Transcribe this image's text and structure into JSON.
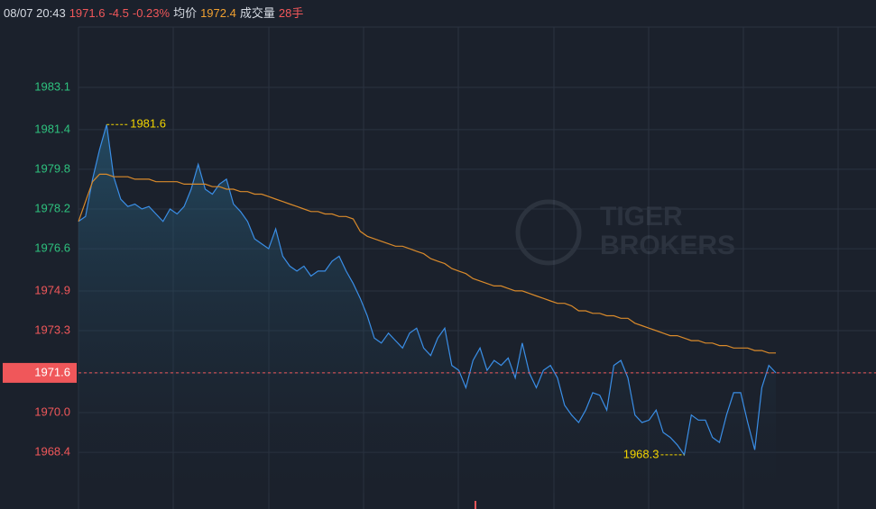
{
  "header": {
    "datetime": "08/07 20:43",
    "price": 1971.6,
    "change": -4.5,
    "change_pct": "-0.23%",
    "avg_label": "均价",
    "avg_price": 1972.4,
    "volume_label": "成交量",
    "volume": "28手"
  },
  "watermark": [
    "TIGER",
    "BROKERS"
  ],
  "chart_data": {
    "type": "line",
    "ylim": [
      1966.77,
      1985.53
    ],
    "yticks": [
      1983.1,
      1981.4,
      1979.8,
      1978.2,
      1976.6,
      1974.9,
      1973.3,
      1971.6,
      {
        "value": 1970,
        "label": "1970.0"
      },
      1968.4
    ],
    "grid": true,
    "max_label": 1981.6,
    "min_label": 1968.3,
    "series": [
      {
        "color": "#3a8ee6",
        "fill": true,
        "values": [
          1977.7,
          1977.9,
          1979.4,
          1980.6,
          1981.6,
          1979.5,
          1978.6,
          1978.3,
          1978.4,
          1978.2,
          1978.3,
          1978.0,
          1977.7,
          1978.2,
          1978.0,
          1978.3,
          1979.0,
          1980.0,
          1979.0,
          1978.8,
          1979.2,
          1979.4,
          1978.4,
          1978.1,
          1977.7,
          1977.0,
          1976.8,
          1976.6,
          1977.4,
          1976.3,
          1975.9,
          1975.7,
          1975.9,
          1975.5,
          1975.7,
          1975.7,
          1976.1,
          1976.3,
          1975.7,
          1975.2,
          1974.6,
          1973.9,
          1973.0,
          1972.8,
          1973.2,
          1972.9,
          1972.6,
          1973.2,
          1973.4,
          1972.6,
          1972.3,
          1973.0,
          1973.4,
          1971.9,
          1971.7,
          1971.0,
          1972.1,
          1972.6,
          1971.7,
          1972.1,
          1971.9,
          1972.2,
          1971.4,
          1972.8,
          1971.6,
          1971.0,
          1971.7,
          1971.9,
          1971.4,
          1970.3,
          1969.9,
          1969.6,
          1970.1,
          1970.8,
          1970.7,
          1970.1,
          1971.9,
          1972.1,
          1971.4,
          1969.9,
          1969.6,
          1969.7,
          1970.1,
          1969.2,
          1969.0,
          1968.7,
          1968.3,
          1969.9,
          1969.7,
          1969.7,
          1969.0,
          1968.8,
          1969.9,
          1970.8,
          1970.8,
          1969.6,
          1968.5,
          1971.0,
          1971.9,
          1971.6
        ]
      },
      {
        "color": "#d98a2b",
        "fill": false,
        "values": [
          1977.7,
          1978.5,
          1979.3,
          1979.6,
          1979.6,
          1979.5,
          1979.5,
          1979.5,
          1979.4,
          1979.4,
          1979.4,
          1979.3,
          1979.3,
          1979.3,
          1979.3,
          1979.2,
          1979.2,
          1979.2,
          1979.2,
          1979.1,
          1979.1,
          1979.0,
          1979.0,
          1978.9,
          1978.9,
          1978.8,
          1978.8,
          1978.7,
          1978.6,
          1978.5,
          1978.4,
          1978.3,
          1978.2,
          1978.1,
          1978.1,
          1978.0,
          1978.0,
          1977.9,
          1977.9,
          1977.8,
          1977.3,
          1977.1,
          1977.0,
          1976.9,
          1976.8,
          1976.7,
          1976.7,
          1976.6,
          1976.5,
          1976.4,
          1976.2,
          1976.1,
          1976.0,
          1975.8,
          1975.7,
          1975.6,
          1975.4,
          1975.3,
          1975.2,
          1975.1,
          1975.1,
          1975.0,
          1974.9,
          1974.9,
          1974.8,
          1974.7,
          1974.6,
          1974.5,
          1974.4,
          1974.4,
          1974.3,
          1974.1,
          1974.1,
          1974.0,
          1974.0,
          1973.9,
          1973.9,
          1973.8,
          1973.8,
          1973.6,
          1973.5,
          1973.4,
          1973.3,
          1973.2,
          1973.1,
          1973.1,
          1973.0,
          1972.9,
          1972.9,
          1972.8,
          1972.8,
          1972.7,
          1972.7,
          1972.6,
          1972.6,
          1972.6,
          1972.5,
          1972.5,
          1972.4,
          1972.4
        ]
      }
    ]
  }
}
